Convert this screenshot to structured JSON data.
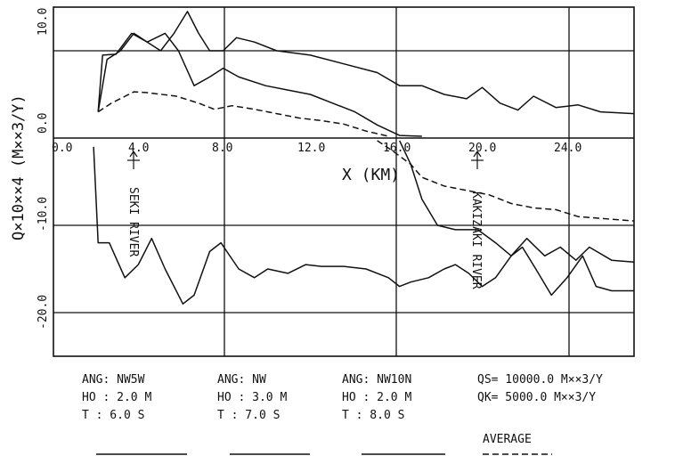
{
  "chart_data": {
    "type": "line",
    "ylabel": "Q×10××4  (M××3/Y)",
    "xlabel": "X  (KM)",
    "xlim": [
      0,
      26
    ],
    "ylim_upper": [
      -1,
      15
    ],
    "ylim_lower": [
      -28,
      0
    ],
    "x_ticks": [
      "0.0",
      "4.0",
      "8.0",
      "12.0",
      "16.0",
      "20.0",
      "24.0"
    ],
    "y_ticks_upper": [
      "10.0",
      "0.0"
    ],
    "y_ticks_lower": [
      "-10.0",
      "-20.0"
    ],
    "annotations": [
      {
        "x": 3.7,
        "text": "SEKI RIVER"
      },
      {
        "x": 19.1,
        "text": "KAKIZAKI RIVER"
      }
    ],
    "series_upper": [
      {
        "style": "solid",
        "points": [
          [
            2.0,
            3
          ],
          [
            2.2,
            9.5
          ],
          [
            2.8,
            9.6
          ],
          [
            3.5,
            12
          ],
          [
            4.2,
            11
          ],
          [
            4.8,
            10
          ],
          [
            5.4,
            12
          ],
          [
            6.0,
            14.5
          ],
          [
            6.5,
            12
          ],
          [
            7.0,
            10
          ],
          [
            7.6,
            10
          ],
          [
            8.2,
            11.5
          ],
          [
            9.0,
            11
          ],
          [
            10.0,
            10
          ],
          [
            11.5,
            9.5
          ],
          [
            13.0,
            8.5
          ],
          [
            14.5,
            7.5
          ],
          [
            15.5,
            6.0
          ],
          [
            16.5,
            6.0
          ],
          [
            17.5,
            5.0
          ],
          [
            18.5,
            4.5
          ],
          [
            19.2,
            5.8
          ],
          [
            20.0,
            4.0
          ],
          [
            20.8,
            3.2
          ],
          [
            21.5,
            4.8
          ],
          [
            22.5,
            3.5
          ],
          [
            23.5,
            3.8
          ],
          [
            24.5,
            3.0
          ],
          [
            26.0,
            2.8
          ]
        ]
      },
      {
        "style": "solid",
        "points": [
          [
            2.0,
            3
          ],
          [
            2.4,
            9
          ],
          [
            3.0,
            10
          ],
          [
            3.6,
            12
          ],
          [
            4.2,
            11
          ],
          [
            5.0,
            12
          ],
          [
            5.6,
            10
          ],
          [
            6.3,
            6
          ],
          [
            7.0,
            7
          ],
          [
            7.6,
            8
          ],
          [
            8.3,
            7
          ],
          [
            9.5,
            6
          ],
          [
            10.5,
            5.5
          ],
          [
            11.5,
            5
          ],
          [
            12.5,
            4
          ],
          [
            13.5,
            3
          ],
          [
            14.5,
            1.5
          ],
          [
            15.5,
            0.3
          ],
          [
            16.5,
            0.2
          ]
        ]
      },
      {
        "style": "dashed",
        "points": [
          [
            2.0,
            3
          ],
          [
            2.6,
            4
          ],
          [
            3.6,
            5.3
          ],
          [
            4.2,
            5.2
          ],
          [
            5.5,
            4.8
          ],
          [
            6.5,
            4.0
          ],
          [
            7.2,
            3.3
          ],
          [
            8.0,
            3.7
          ],
          [
            9.0,
            3.3
          ],
          [
            10.0,
            2.8
          ],
          [
            11.0,
            2.3
          ],
          [
            12.0,
            2.0
          ],
          [
            13.0,
            1.6
          ],
          [
            14.0,
            0.8
          ],
          [
            15.0,
            0.2
          ]
        ]
      }
    ],
    "series_lower": [
      {
        "style": "solid",
        "points": [
          [
            1.8,
            -1.0
          ],
          [
            2.0,
            -12
          ],
          [
            2.5,
            -12
          ],
          [
            3.2,
            -16
          ],
          [
            3.8,
            -14.5
          ],
          [
            4.4,
            -11.5
          ],
          [
            5.0,
            -15
          ],
          [
            5.8,
            -19
          ],
          [
            6.3,
            -18
          ],
          [
            7.0,
            -13
          ],
          [
            7.5,
            -12
          ],
          [
            8.3,
            -15
          ],
          [
            9.0,
            -16
          ],
          [
            9.6,
            -15
          ],
          [
            10.5,
            -15.5
          ],
          [
            11.3,
            -14.5
          ],
          [
            12.0,
            -14.7
          ],
          [
            13.0,
            -14.7
          ],
          [
            14.0,
            -15
          ],
          [
            15.0,
            -16
          ],
          [
            15.5,
            -17
          ],
          [
            16.0,
            -16.5
          ],
          [
            16.8,
            -16
          ],
          [
            17.5,
            -15
          ],
          [
            18.0,
            -14.5
          ],
          [
            18.6,
            -15.5
          ],
          [
            19.2,
            -17
          ],
          [
            19.8,
            -16
          ],
          [
            20.5,
            -13.5
          ],
          [
            21.0,
            -12.5
          ],
          [
            21.6,
            -15
          ],
          [
            22.3,
            -18
          ],
          [
            23.0,
            -16
          ],
          [
            23.7,
            -13.5
          ],
          [
            24.3,
            -17
          ],
          [
            25.0,
            -17.5
          ],
          [
            26.0,
            -17.5
          ]
        ]
      },
      {
        "style": "solid",
        "points": [
          [
            15.5,
            -0.3
          ],
          [
            16.0,
            -3
          ],
          [
            16.5,
            -7
          ],
          [
            17.2,
            -10
          ],
          [
            18.0,
            -10.5
          ],
          [
            19.0,
            -10.5
          ],
          [
            19.8,
            -12
          ],
          [
            20.5,
            -13.5
          ],
          [
            21.2,
            -11.5
          ],
          [
            22.0,
            -13.5
          ],
          [
            22.7,
            -12.5
          ],
          [
            23.4,
            -14
          ],
          [
            24.0,
            -12.5
          ],
          [
            25.0,
            -14
          ],
          [
            26.0,
            -14.2
          ]
        ]
      },
      {
        "style": "dashed",
        "points": [
          [
            14.5,
            -0.3
          ],
          [
            15.2,
            -1.5
          ],
          [
            16.0,
            -3.0
          ],
          [
            16.5,
            -4.5
          ],
          [
            17.5,
            -5.5
          ],
          [
            18.5,
            -6.0
          ],
          [
            19.5,
            -6.5
          ],
          [
            20.5,
            -7.5
          ],
          [
            21.5,
            -8.0
          ],
          [
            22.5,
            -8.2
          ],
          [
            23.5,
            -9.0
          ],
          [
            24.5,
            -9.2
          ],
          [
            26.0,
            -9.5
          ]
        ]
      }
    ]
  },
  "legend": {
    "col1": {
      "ang": "ANG: NW5W",
      "ho": "HO : 2.0 M",
      "t": "T  : 6.0 S"
    },
    "col2": {
      "ang": "ANG: NW",
      "ho": "HO : 3.0 M",
      "t": "T  : 7.0 S"
    },
    "col3": {
      "ang": "ANG: NW10N",
      "ho": "HO : 2.0 M",
      "t": "T  : 8.0 S"
    },
    "col4": {
      "qs": "QS= 10000.0 M××3/Y",
      "qk": "QK=  5000.0 M××3/Y",
      "average": "AVERAGE"
    }
  }
}
